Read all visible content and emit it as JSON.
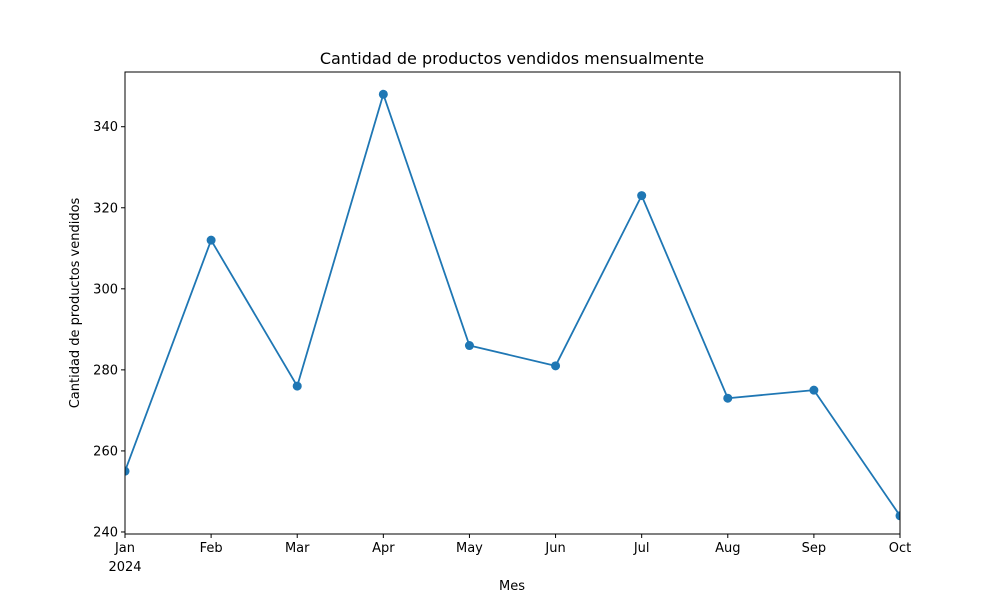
{
  "chart_data": {
    "type": "line",
    "title": "Cantidad de productos vendidos mensualmente",
    "xlabel": "Mes",
    "ylabel": "Cantidad de productos vendidos",
    "categories": [
      "Jan",
      "Feb",
      "Mar",
      "Apr",
      "May",
      "Jun",
      "Jul",
      "Aug",
      "Sep",
      "Oct"
    ],
    "year_label": "2024",
    "series": [
      {
        "values": [
          255,
          312,
          276,
          348,
          286,
          281,
          323,
          273,
          275,
          244
        ],
        "color": "#1f77b4",
        "marker": "circle"
      }
    ],
    "ylim": [
      239.5,
      353.5
    ],
    "yticks": [
      240,
      260,
      280,
      300,
      320,
      340
    ],
    "grid": false,
    "legend": "none"
  }
}
